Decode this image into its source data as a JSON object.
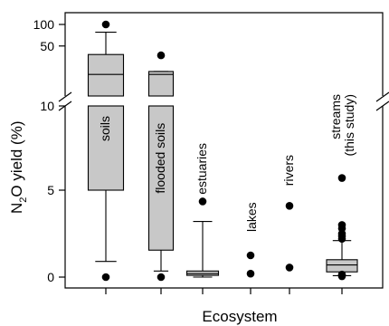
{
  "chart_data": {
    "type": "box",
    "xlabel": "Ecosystem",
    "ylabel_main": "N",
    "ylabel_sub": "2",
    "ylabel_rest": "O yield (%)",
    "axis_break": true,
    "lower_segment": {
      "range": [
        -0.6,
        10
      ],
      "ticks": [
        0,
        5,
        10
      ]
    },
    "upper_segment": {
      "range": [
        10,
        100
      ],
      "ticks": [
        50,
        100
      ],
      "scale": "log"
    },
    "categories": [
      {
        "label": "soils",
        "whisker_low": 0.9,
        "q1": 5.0,
        "median": 20,
        "q3": 38,
        "whisker_high": 78,
        "outliers": [
          0,
          100
        ]
      },
      {
        "label": "flooded soils",
        "whisker_low": 0.35,
        "q1": 1.55,
        "median": 20,
        "q3": 22,
        "whisker_high": 22,
        "outliers": [
          0,
          37
        ]
      },
      {
        "label": "estuaries",
        "whisker_low": 0.0,
        "q1": 0.1,
        "median": 0.2,
        "q3": 0.35,
        "whisker_high": 3.2,
        "outliers": [
          4.35
        ]
      },
      {
        "label": "lakes",
        "outliers": [
          1.25,
          0.2
        ]
      },
      {
        "label": "rivers",
        "outliers": [
          4.1,
          0.55
        ]
      },
      {
        "label_lines": [
          "streams",
          "(this study)"
        ],
        "whisker_low": 0.08,
        "q1": 0.3,
        "median": 0.7,
        "q3": 1.0,
        "whisker_high": 2.1,
        "outliers": [
          5.7,
          3.0,
          2.8,
          2.5,
          2.35,
          2.2,
          0.15,
          0.05
        ]
      }
    ]
  }
}
